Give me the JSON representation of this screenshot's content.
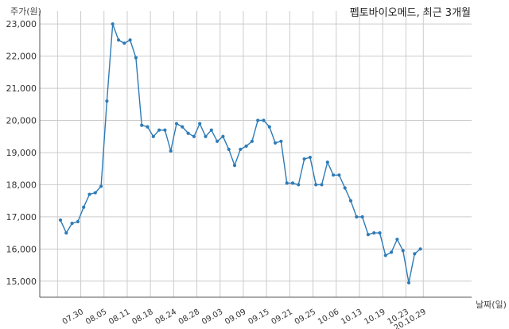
{
  "chart_data": {
    "type": "line",
    "title": "펩토바이오메드, 최근 3개월",
    "ylabel": "주가(원)",
    "xlabel": "날짜(일)",
    "ylim": [
      14500,
      23400
    ],
    "yticks": [
      15000,
      16000,
      17000,
      18000,
      19000,
      20000,
      21000,
      22000,
      23000
    ],
    "ytick_labels": [
      "15,000",
      "16,000",
      "17,000",
      "18,000",
      "19,000",
      "20,000",
      "21,000",
      "22,000",
      "23,000"
    ],
    "xtick_labels": [
      "07.30",
      "08.05",
      "08.11",
      "08.18",
      "08.24",
      "08.28",
      "09.03",
      "09.09",
      "09.15",
      "09.21",
      "09.25",
      "10.06",
      "10.13",
      "10.19",
      "10.23",
      "20.10.29"
    ],
    "xtick_index": [
      3.5,
      7.5,
      11.5,
      15.5,
      19.5,
      23.5,
      27.5,
      31.5,
      35.5,
      39.5,
      43.5,
      47.5,
      51.5,
      55.5,
      59.5,
      62.5
    ],
    "grid": true,
    "line_color": "#2e7bb6",
    "series": [
      {
        "values": [
          16900,
          16500,
          16800,
          16850,
          17300,
          17700,
          17750,
          17950,
          20600,
          23000,
          22500,
          22400,
          22500,
          21950,
          19850,
          19800,
          19500,
          19700,
          19700,
          19050,
          19900,
          19800,
          19600,
          19500,
          19900,
          19500,
          19700,
          19350,
          19500,
          19100,
          18600,
          19100,
          19200,
          19350,
          20000,
          20000,
          19800,
          19300,
          19350,
          18050,
          18050,
          18000,
          18800,
          18850,
          18000,
          18000,
          18700,
          18300,
          18300,
          17900,
          17500,
          17000,
          17000,
          16450,
          16500,
          16500,
          15800,
          15900,
          16300,
          15950,
          14950,
          15850,
          16000
        ]
      }
    ]
  }
}
